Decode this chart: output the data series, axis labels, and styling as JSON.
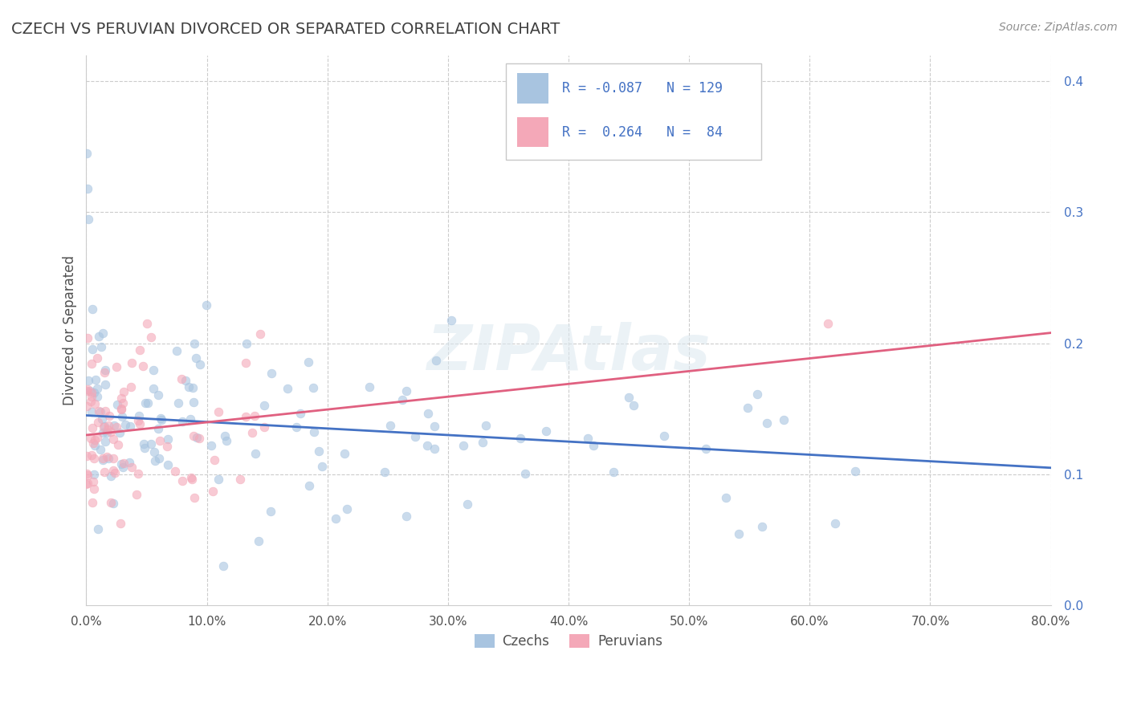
{
  "title": "CZECH VS PERUVIAN DIVORCED OR SEPARATED CORRELATION CHART",
  "source": "Source: ZipAtlas.com",
  "ylabel": "Divorced or Separated",
  "xmin": 0.0,
  "xmax": 0.8,
  "ymin": 0.0,
  "ymax": 0.42,
  "xticks": [
    0.0,
    0.1,
    0.2,
    0.3,
    0.4,
    0.5,
    0.6,
    0.7,
    0.8
  ],
  "xtick_labels": [
    "0.0%",
    "10.0%",
    "20.0%",
    "30.0%",
    "40.0%",
    "50.0%",
    "60.0%",
    "70.0%",
    "80.0%"
  ],
  "yticks": [
    0.0,
    0.1,
    0.2,
    0.3,
    0.4
  ],
  "ytick_labels": [
    "",
    "10.0%",
    "20.0%",
    "30.0%",
    "40.0%"
  ],
  "czech_color": "#a8c4e0",
  "peruvian_color": "#f4a8b8",
  "czech_line_color": "#4472c4",
  "peruvian_line_color": "#e06080",
  "czech_R": -0.087,
  "czech_N": 129,
  "peruvian_R": 0.264,
  "peruvian_N": 84,
  "watermark": "ZIPAtlas",
  "background_color": "#ffffff",
  "grid_color": "#cccccc",
  "title_color": "#404040",
  "legend_text_color": "#4472c4",
  "czech_trend_start": 0.145,
  "czech_trend_end": 0.105,
  "peruvian_trend_start": 0.13,
  "peruvian_trend_end": 0.208
}
